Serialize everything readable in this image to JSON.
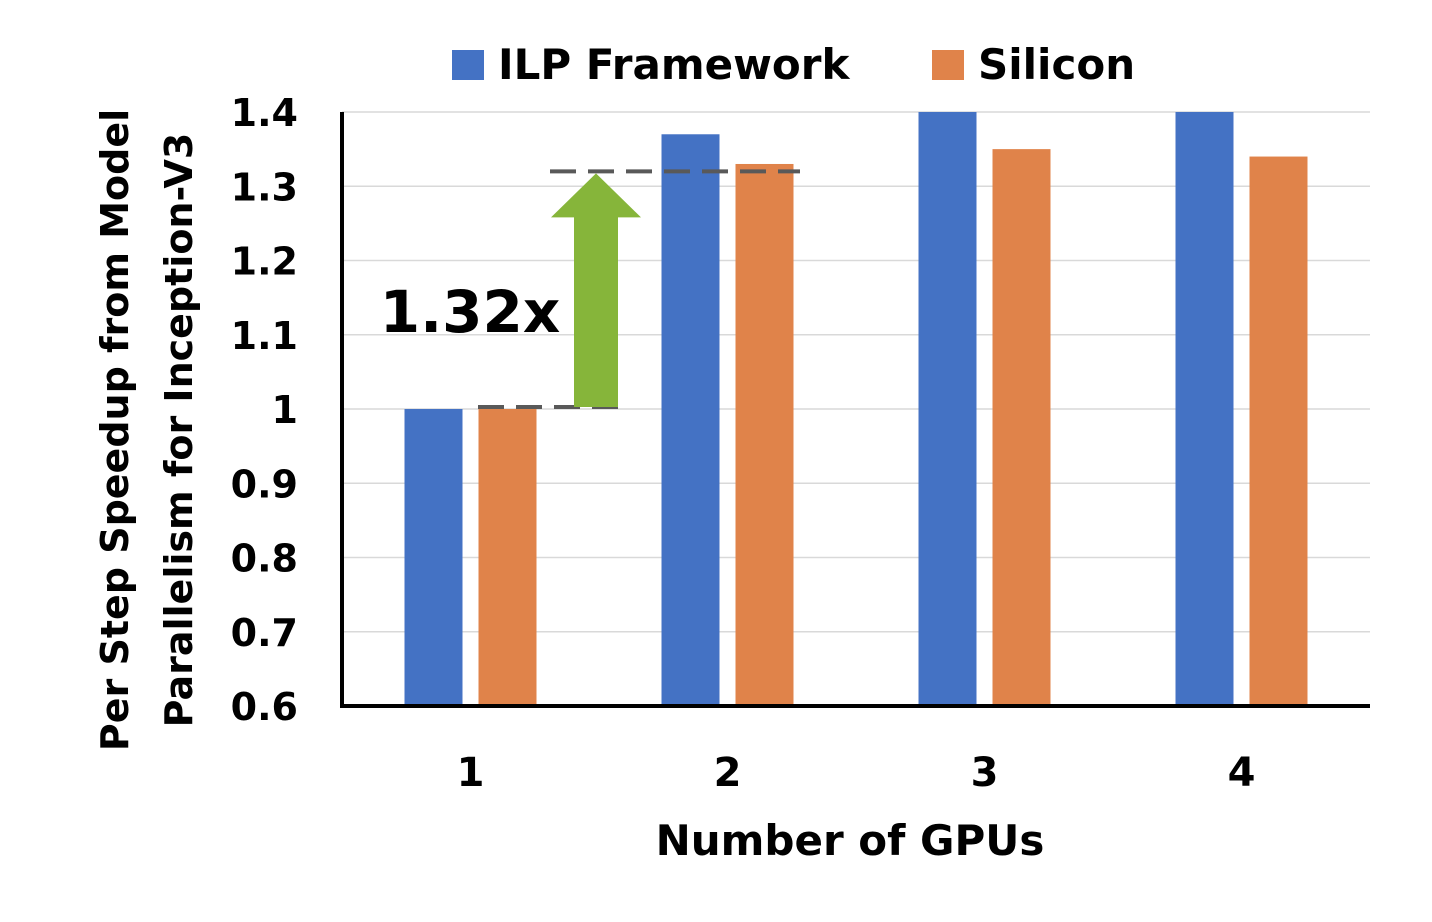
{
  "chart_data": {
    "type": "bar",
    "categories": [
      "1",
      "2",
      "3",
      "4"
    ],
    "series": [
      {
        "name": "ILP Framework",
        "color": "#4472C4",
        "values": [
          1.0,
          1.37,
          1.42,
          1.42
        ]
      },
      {
        "name": "Silicon",
        "color": "#E0834A",
        "values": [
          1.0,
          1.33,
          1.35,
          1.34
        ]
      }
    ],
    "title": "",
    "xlabel": "Number of GPUs",
    "ylabel_lines": [
      "Per Step Speedup from Model",
      "Parallelism for Inception-V3"
    ],
    "ylim": [
      0.6,
      1.4
    ],
    "yticks": [
      "0.6",
      "0.7",
      "0.8",
      "0.9",
      "1",
      "1.1",
      "1.2",
      "1.3",
      "1.4"
    ],
    "grid": true,
    "legend_position": "top",
    "annotation": {
      "text": "1.32x",
      "arrow_color": "#86B53A",
      "from_value": 1.0,
      "to_value": 1.32
    }
  }
}
